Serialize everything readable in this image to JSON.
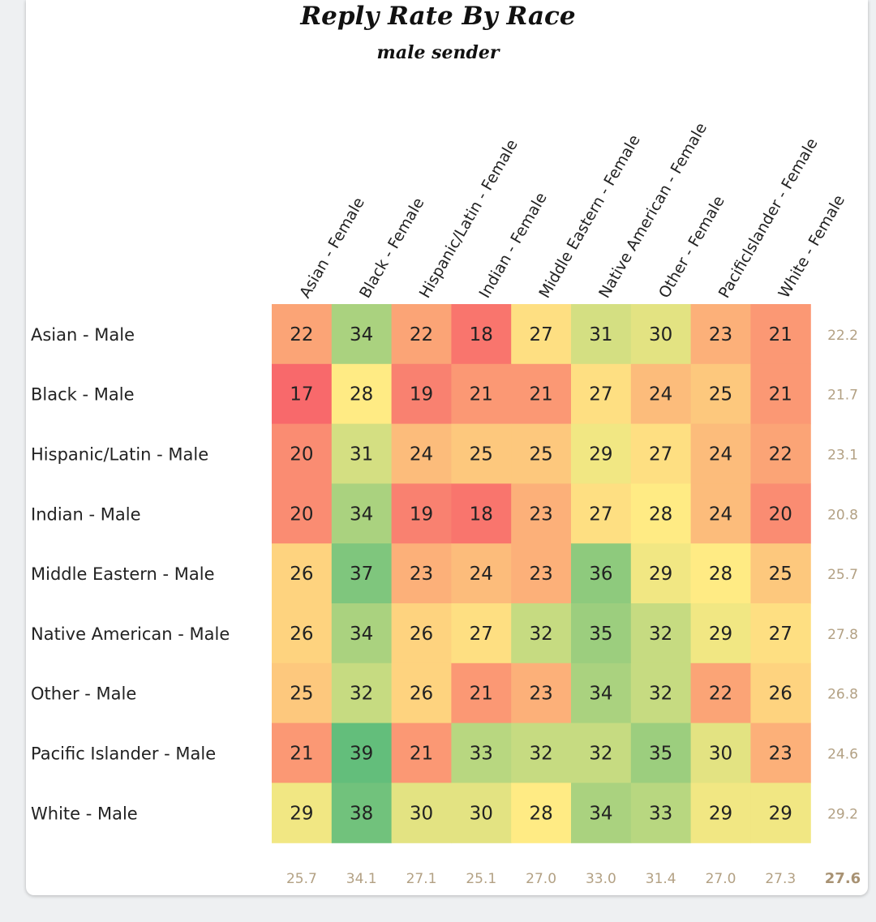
{
  "chart_data": {
    "type": "heatmap",
    "title": "Reply Rate By Race",
    "subtitle": "male sender",
    "rows": [
      "Asian - Male",
      "Black - Male",
      "Hispanic/Latin - Male",
      "Indian - Male",
      "Middle Eastern - Male",
      "Native American - Male",
      "Other - Male",
      "Pacific Islander - Male",
      "White - Male"
    ],
    "columns": [
      "Asian - Female",
      "Black - Female",
      "Hispanic/Latin - Female",
      "Indian - Female",
      "Middle Eastern - Female",
      "Native American - Female",
      "Other - Female",
      "Pacificlslander - Female",
      "White - Female"
    ],
    "values": [
      [
        22,
        34,
        22,
        18,
        27,
        31,
        30,
        23,
        21
      ],
      [
        17,
        28,
        19,
        21,
        21,
        27,
        24,
        25,
        21
      ],
      [
        20,
        31,
        24,
        25,
        25,
        29,
        27,
        24,
        22
      ],
      [
        20,
        34,
        19,
        18,
        23,
        27,
        28,
        24,
        20
      ],
      [
        26,
        37,
        23,
        24,
        23,
        36,
        29,
        28,
        25
      ],
      [
        26,
        34,
        26,
        27,
        32,
        35,
        32,
        29,
        27
      ],
      [
        25,
        32,
        26,
        21,
        23,
        34,
        32,
        22,
        26
      ],
      [
        21,
        39,
        21,
        33,
        32,
        32,
        35,
        30,
        23
      ],
      [
        29,
        38,
        30,
        30,
        28,
        34,
        33,
        29,
        29
      ]
    ],
    "row_averages": [
      "22.2",
      "21.7",
      "23.1",
      "20.8",
      "25.7",
      "27.8",
      "26.8",
      "24.6",
      "29.2"
    ],
    "column_averages": [
      "25.7",
      "34.1",
      "27.1",
      "25.1",
      "27.0",
      "33.0",
      "31.4",
      "27.0",
      "27.3"
    ],
    "overall_average": "27.6",
    "color_scale": {
      "low": "#f8696b",
      "mid": "#ffeb84",
      "high": "#63be7b"
    }
  }
}
